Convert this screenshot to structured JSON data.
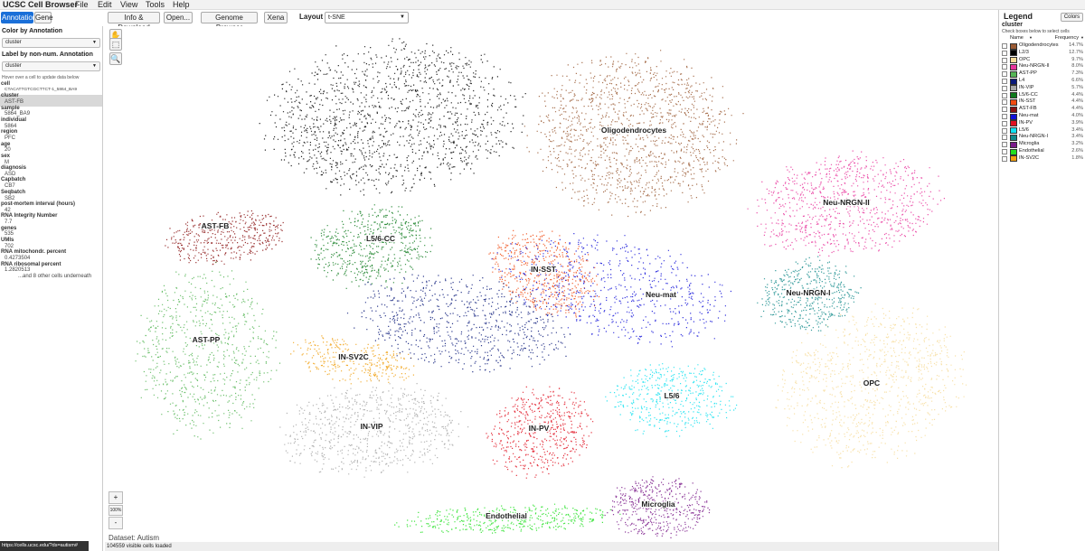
{
  "menubar": {
    "title": "UCSC Cell Browser",
    "items": [
      "File",
      "Edit",
      "View",
      "Tools",
      "Help"
    ]
  },
  "toolbar": {
    "tabs": [
      "Annotation",
      "Gene"
    ],
    "buttons": [
      "Info & Download",
      "Open...",
      "Genome Browser",
      "Xena"
    ],
    "layout_label": "Layout",
    "layout_value": "t-SNE"
  },
  "left_panel": {
    "color_by_title": "Color by Annotation",
    "color_by_value": "cluster",
    "label_by_title": "Label by non-num. Annotation",
    "label_by_value": "cluster",
    "hover_hint": "Hover over a cell to update data below",
    "metadata": [
      {
        "name": "cell",
        "value": "CTACATTGTCGCTTCT-1_5864_BA9"
      },
      {
        "name": "cluster",
        "value": "AST-FB"
      },
      {
        "name": "sample",
        "value": "5864_BA9"
      },
      {
        "name": "individual",
        "value": "5864"
      },
      {
        "name": "region",
        "value": "PFC"
      },
      {
        "name": "age",
        "value": "20"
      },
      {
        "name": "sex",
        "value": "M"
      },
      {
        "name": "diagnosis",
        "value": "ASD"
      },
      {
        "name": "Capbatch",
        "value": "CB7"
      },
      {
        "name": "Seqbatch",
        "value": "SB2"
      },
      {
        "name": "post-mortem interval (hours)",
        "value": "42"
      },
      {
        "name": "RNA Integrity Number",
        "value": "7.7"
      },
      {
        "name": "genes",
        "value": "535"
      },
      {
        "name": "UMIs",
        "value": "702"
      },
      {
        "name": "RNA mitochondr. percent",
        "value": "0.4273504"
      },
      {
        "name": "RNA ribosomal percent",
        "value": "1.2820513"
      }
    ],
    "others_note": "...and 8 other cells underneath"
  },
  "plot": {
    "tools": [
      "hand-icon",
      "select-icon",
      "zoom-icon"
    ],
    "zoom_in": "+",
    "zoom_level": "100%",
    "zoom_out": "-",
    "dataset_label": "Dataset: Autism",
    "status": "104559 visible cells loaded",
    "url_tip": "https://cells.ucsc.edu/?ds=autism#"
  },
  "legend": {
    "title": "Legend",
    "colors_button": "Colors",
    "field": "cluster",
    "hint": "Check boxes below to select cells",
    "col_name": "Name",
    "col_freq": "Frequency",
    "entries": [
      {
        "name": "Oligodendrocytes",
        "freq": "14.7%",
        "color": "#9a5b34"
      },
      {
        "name": "L2/3",
        "freq": "12.7%",
        "color": "#000000"
      },
      {
        "name": "OPC",
        "freq": "9.7%",
        "color": "#f7dc99"
      },
      {
        "name": "Neu-NRGN-II",
        "freq": "8.0%",
        "color": "#e8339b"
      },
      {
        "name": "AST-PP",
        "freq": "7.3%",
        "color": "#55b555"
      },
      {
        "name": "L4",
        "freq": "6.6%",
        "color": "#0a1a7a"
      },
      {
        "name": "IN-VIP",
        "freq": "5.7%",
        "color": "#a6a6a6"
      },
      {
        "name": "L5/6-CC",
        "freq": "4.4%",
        "color": "#0d7a1c"
      },
      {
        "name": "IN-SST",
        "freq": "4.4%",
        "color": "#f04a10"
      },
      {
        "name": "AST-FB",
        "freq": "4.4%",
        "color": "#8a1010"
      },
      {
        "name": "Neu-mat",
        "freq": "4.0%",
        "color": "#1010d8"
      },
      {
        "name": "IN-PV",
        "freq": "3.9%",
        "color": "#e01020"
      },
      {
        "name": "L5/6",
        "freq": "3.4%",
        "color": "#10e0f0"
      },
      {
        "name": "Neu-NRGN-I",
        "freq": "3.4%",
        "color": "#108a8a"
      },
      {
        "name": "Microglia",
        "freq": "3.2%",
        "color": "#7a1a8a"
      },
      {
        "name": "Endothelial",
        "freq": "2.6%",
        "color": "#20e020"
      },
      {
        "name": "IN-SV2C",
        "freq": "1.8%",
        "color": "#f0a010"
      }
    ]
  },
  "clusters": [
    {
      "name": "L2/3",
      "label": "",
      "color": "#000000"
    },
    {
      "name": "Oligodendrocytes",
      "label": "Oligodendrocytes",
      "color": "#9a5b34"
    },
    {
      "name": "AST-FB",
      "label": "AST-FB",
      "color": "#8a1010"
    },
    {
      "name": "L5/6-CC",
      "label": "L5/6-CC",
      "color": "#0d7a1c"
    },
    {
      "name": "IN-SST",
      "label": "IN-SST",
      "color": "#f04a10"
    },
    {
      "name": "Neu-mat",
      "label": "Neu-mat",
      "color": "#1010d8"
    },
    {
      "name": "Neu-NRGN-II",
      "label": "Neu-NRGN-II",
      "color": "#e8339b"
    },
    {
      "name": "Neu-NRGN-I",
      "label": "Neu-NRGN-I",
      "color": "#108a8a"
    },
    {
      "name": "AST-PP",
      "label": "AST-PP",
      "color": "#55b555"
    },
    {
      "name": "IN-SV2C",
      "label": "IN-SV2C",
      "color": "#f0a010"
    },
    {
      "name": "L4",
      "label": "",
      "color": "#0a1a7a"
    },
    {
      "name": "L5/6",
      "label": "L5/6",
      "color": "#10e0f0"
    },
    {
      "name": "OPC",
      "label": "OPC",
      "color": "#f7dc99"
    },
    {
      "name": "IN-VIP",
      "label": "IN-VIP",
      "color": "#a6a6a6"
    },
    {
      "name": "IN-PV",
      "label": "IN-PV",
      "color": "#e01020"
    },
    {
      "name": "Microglia",
      "label": "Microglia",
      "color": "#7a1a8a"
    },
    {
      "name": "Endothelial",
      "label": "Endothelial",
      "color": "#20e020"
    }
  ]
}
